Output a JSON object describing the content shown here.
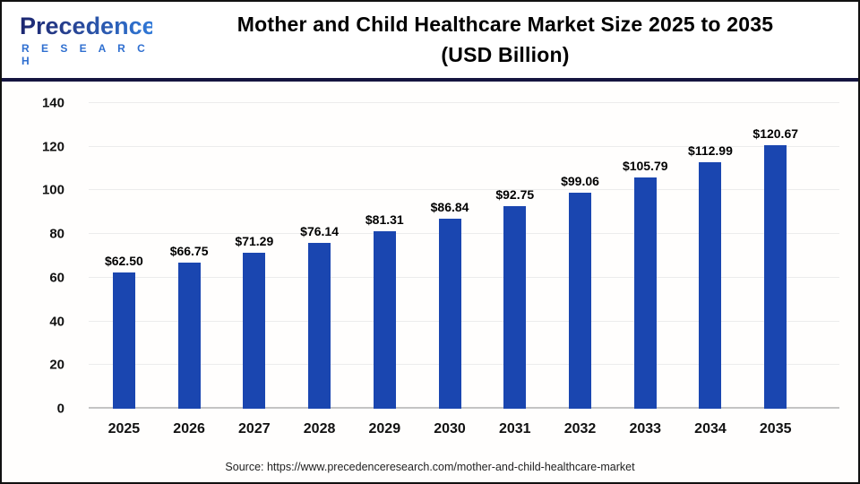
{
  "logo": {
    "brand": "Precedence",
    "sub": "R E S E A R C H"
  },
  "header": {
    "title_line1": "Mother and Child Healthcare Market Size 2025 to 2035",
    "title_line2": "(USD Billion)"
  },
  "footer": {
    "source": "Source: https://www.precedenceresearch.com/mother-and-child-healthcare-market"
  },
  "colors": {
    "bar": "#1a46b0",
    "header_separator": "#15153f",
    "gridline": "#ececec",
    "baseline": "#c4c4c4",
    "title_text": "#000000"
  },
  "chart_data": {
    "type": "bar",
    "title": "Mother and Child Healthcare Market Size 2025 to 2035 (USD Billion)",
    "categories": [
      "2025",
      "2026",
      "2027",
      "2028",
      "2029",
      "2030",
      "2031",
      "2032",
      "2033",
      "2034",
      "2035"
    ],
    "values": [
      62.5,
      66.75,
      71.29,
      76.14,
      81.31,
      86.84,
      92.75,
      99.06,
      105.79,
      112.99,
      120.67
    ],
    "value_labels": [
      "$62.50",
      "$66.75",
      "$71.29",
      "$76.14",
      "$81.31",
      "$86.84",
      "$92.75",
      "$99.06",
      "$105.79",
      "$112.99",
      "$120.67"
    ],
    "xlabel": "",
    "ylabel": "",
    "ylim": [
      0,
      140
    ],
    "yticks": [
      0,
      20,
      40,
      60,
      80,
      100,
      120,
      140
    ],
    "grid": true,
    "legend_position": "none",
    "bar_color": "#1a46b0"
  }
}
